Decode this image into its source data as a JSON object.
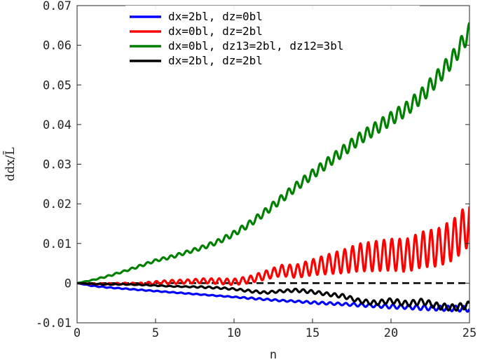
{
  "chart_data": {
    "type": "line",
    "title": "",
    "xlabel": "n",
    "ylabel": "ddx/L̄",
    "xlim": [
      0,
      25
    ],
    "ylim": [
      -0.01,
      0.07
    ],
    "xticks": [
      0,
      5,
      10,
      15,
      20,
      25
    ],
    "xtick_labels": [
      "0",
      "5",
      "10",
      "15",
      "20",
      "25"
    ],
    "yticks": [
      -0.01,
      0,
      0.01,
      0.02,
      0.03,
      0.04,
      0.05,
      0.06,
      0.07
    ],
    "ytick_labels": [
      "-0.01",
      "0",
      "0.01",
      "0.02",
      "0.03",
      "0.04",
      "0.05",
      "0.06",
      "0.07"
    ],
    "grid": false,
    "legend_position": "top",
    "reference_line": {
      "y": 0,
      "style": "dashed",
      "color": "#000000"
    },
    "series": [
      {
        "name": "dx=2bl, dz=0bl",
        "color": "#0000ff",
        "x": [
          0,
          1,
          2,
          3,
          4,
          5,
          6,
          7,
          8,
          9,
          10,
          11,
          12,
          13,
          14,
          15,
          16,
          17,
          18,
          19,
          20,
          21,
          22,
          23,
          24,
          25
        ],
        "y": [
          0,
          -0.0007,
          -0.0011,
          -0.0014,
          -0.0017,
          -0.002,
          -0.0023,
          -0.0026,
          -0.0029,
          -0.0032,
          -0.0035,
          -0.0038,
          -0.0041,
          -0.0044,
          -0.0046,
          -0.0049,
          -0.0051,
          -0.0053,
          -0.0055,
          -0.0057,
          -0.0059,
          -0.006,
          -0.0062,
          -0.0063,
          -0.0064,
          -0.0065
        ],
        "oscillation_amplitude": [
          0,
          0.0001,
          0.0001,
          0.0001,
          0.0001,
          0.0001,
          0.0001,
          0.0001,
          0.0001,
          0.0001,
          0.0001,
          0.0002,
          0.0002,
          0.0002,
          0.0002,
          0.0003,
          0.0003,
          0.0003,
          0.0004,
          0.0004,
          0.0005,
          0.0005,
          0.0006,
          0.0006,
          0.0007,
          0.0007
        ]
      },
      {
        "name": "dx=0bl, dz=2bl",
        "color": "#ff0000",
        "x": [
          0,
          1,
          2,
          3,
          4,
          5,
          6,
          7,
          8,
          9,
          10,
          11,
          12,
          13,
          14,
          15,
          16,
          17,
          18,
          19,
          20,
          21,
          22,
          23,
          24,
          25
        ],
        "y": [
          0,
          -0.0002,
          -0.0002,
          -0.0001,
          -0.0002,
          0.0001,
          0.0003,
          0.0004,
          0.0006,
          0.0005,
          0.0003,
          0.0009,
          0.002,
          0.0032,
          0.003,
          0.004,
          0.0048,
          0.0055,
          0.0065,
          0.0068,
          0.0072,
          0.007,
          0.0085,
          0.009,
          0.011,
          0.015
        ],
        "oscillation_amplitude": [
          0,
          0.0001,
          0.0002,
          0.0002,
          0.0003,
          0.0004,
          0.0005,
          0.0005,
          0.0006,
          0.0007,
          0.0008,
          0.0009,
          0.0011,
          0.0014,
          0.0017,
          0.002,
          0.0025,
          0.003,
          0.0035,
          0.0038,
          0.004,
          0.0042,
          0.0045,
          0.0048,
          0.0052,
          0.0055
        ]
      },
      {
        "name": "dx=0bl, dz13=2bl, dz12=3bl",
        "color": "#008000",
        "x": [
          0,
          1,
          2,
          3,
          4,
          5,
          6,
          7,
          8,
          9,
          10,
          11,
          12,
          13,
          14,
          15,
          16,
          17,
          18,
          19,
          20,
          21,
          22,
          23,
          24,
          25
        ],
        "y": [
          0,
          0.0008,
          0.0018,
          0.003,
          0.0043,
          0.0057,
          0.0066,
          0.0078,
          0.009,
          0.0105,
          0.0125,
          0.015,
          0.018,
          0.0212,
          0.0245,
          0.0275,
          0.0305,
          0.0335,
          0.0365,
          0.039,
          0.0415,
          0.044,
          0.0475,
          0.052,
          0.057,
          0.0635
        ],
        "oscillation_amplitude": [
          0,
          0.0001,
          0.0002,
          0.0002,
          0.0003,
          0.0003,
          0.0004,
          0.0004,
          0.0005,
          0.0006,
          0.0007,
          0.0008,
          0.0009,
          0.001,
          0.0011,
          0.0012,
          0.0013,
          0.0014,
          0.0015,
          0.0016,
          0.0017,
          0.0018,
          0.0019,
          0.002,
          0.0021,
          0.0022
        ]
      },
      {
        "name": "dx=2bl, dz=2bl",
        "color": "#000000",
        "x": [
          0,
          1,
          2,
          3,
          4,
          5,
          6,
          7,
          8,
          9,
          10,
          11,
          12,
          13,
          14,
          15,
          16,
          17,
          18,
          19,
          20,
          21,
          22,
          23,
          24,
          25
        ],
        "y": [
          0,
          -0.0002,
          -0.0003,
          -0.0003,
          -0.0004,
          -0.0006,
          -0.0008,
          -0.0009,
          -0.001,
          -0.0012,
          -0.0015,
          -0.002,
          -0.0024,
          -0.002,
          -0.0018,
          -0.0022,
          -0.0028,
          -0.0033,
          -0.0045,
          -0.005,
          -0.0044,
          -0.0052,
          -0.0046,
          -0.0058,
          -0.0062,
          -0.0055
        ],
        "oscillation_amplitude": [
          0,
          0.0001,
          0.0001,
          0.0001,
          0.0001,
          0.0001,
          0.0001,
          0.0001,
          0.0002,
          0.0002,
          0.0002,
          0.0003,
          0.0003,
          0.0003,
          0.0004,
          0.0004,
          0.0004,
          0.0005,
          0.0005,
          0.0006,
          0.0006,
          0.0007,
          0.0007,
          0.0008,
          0.0008,
          0.0009
        ]
      }
    ]
  }
}
